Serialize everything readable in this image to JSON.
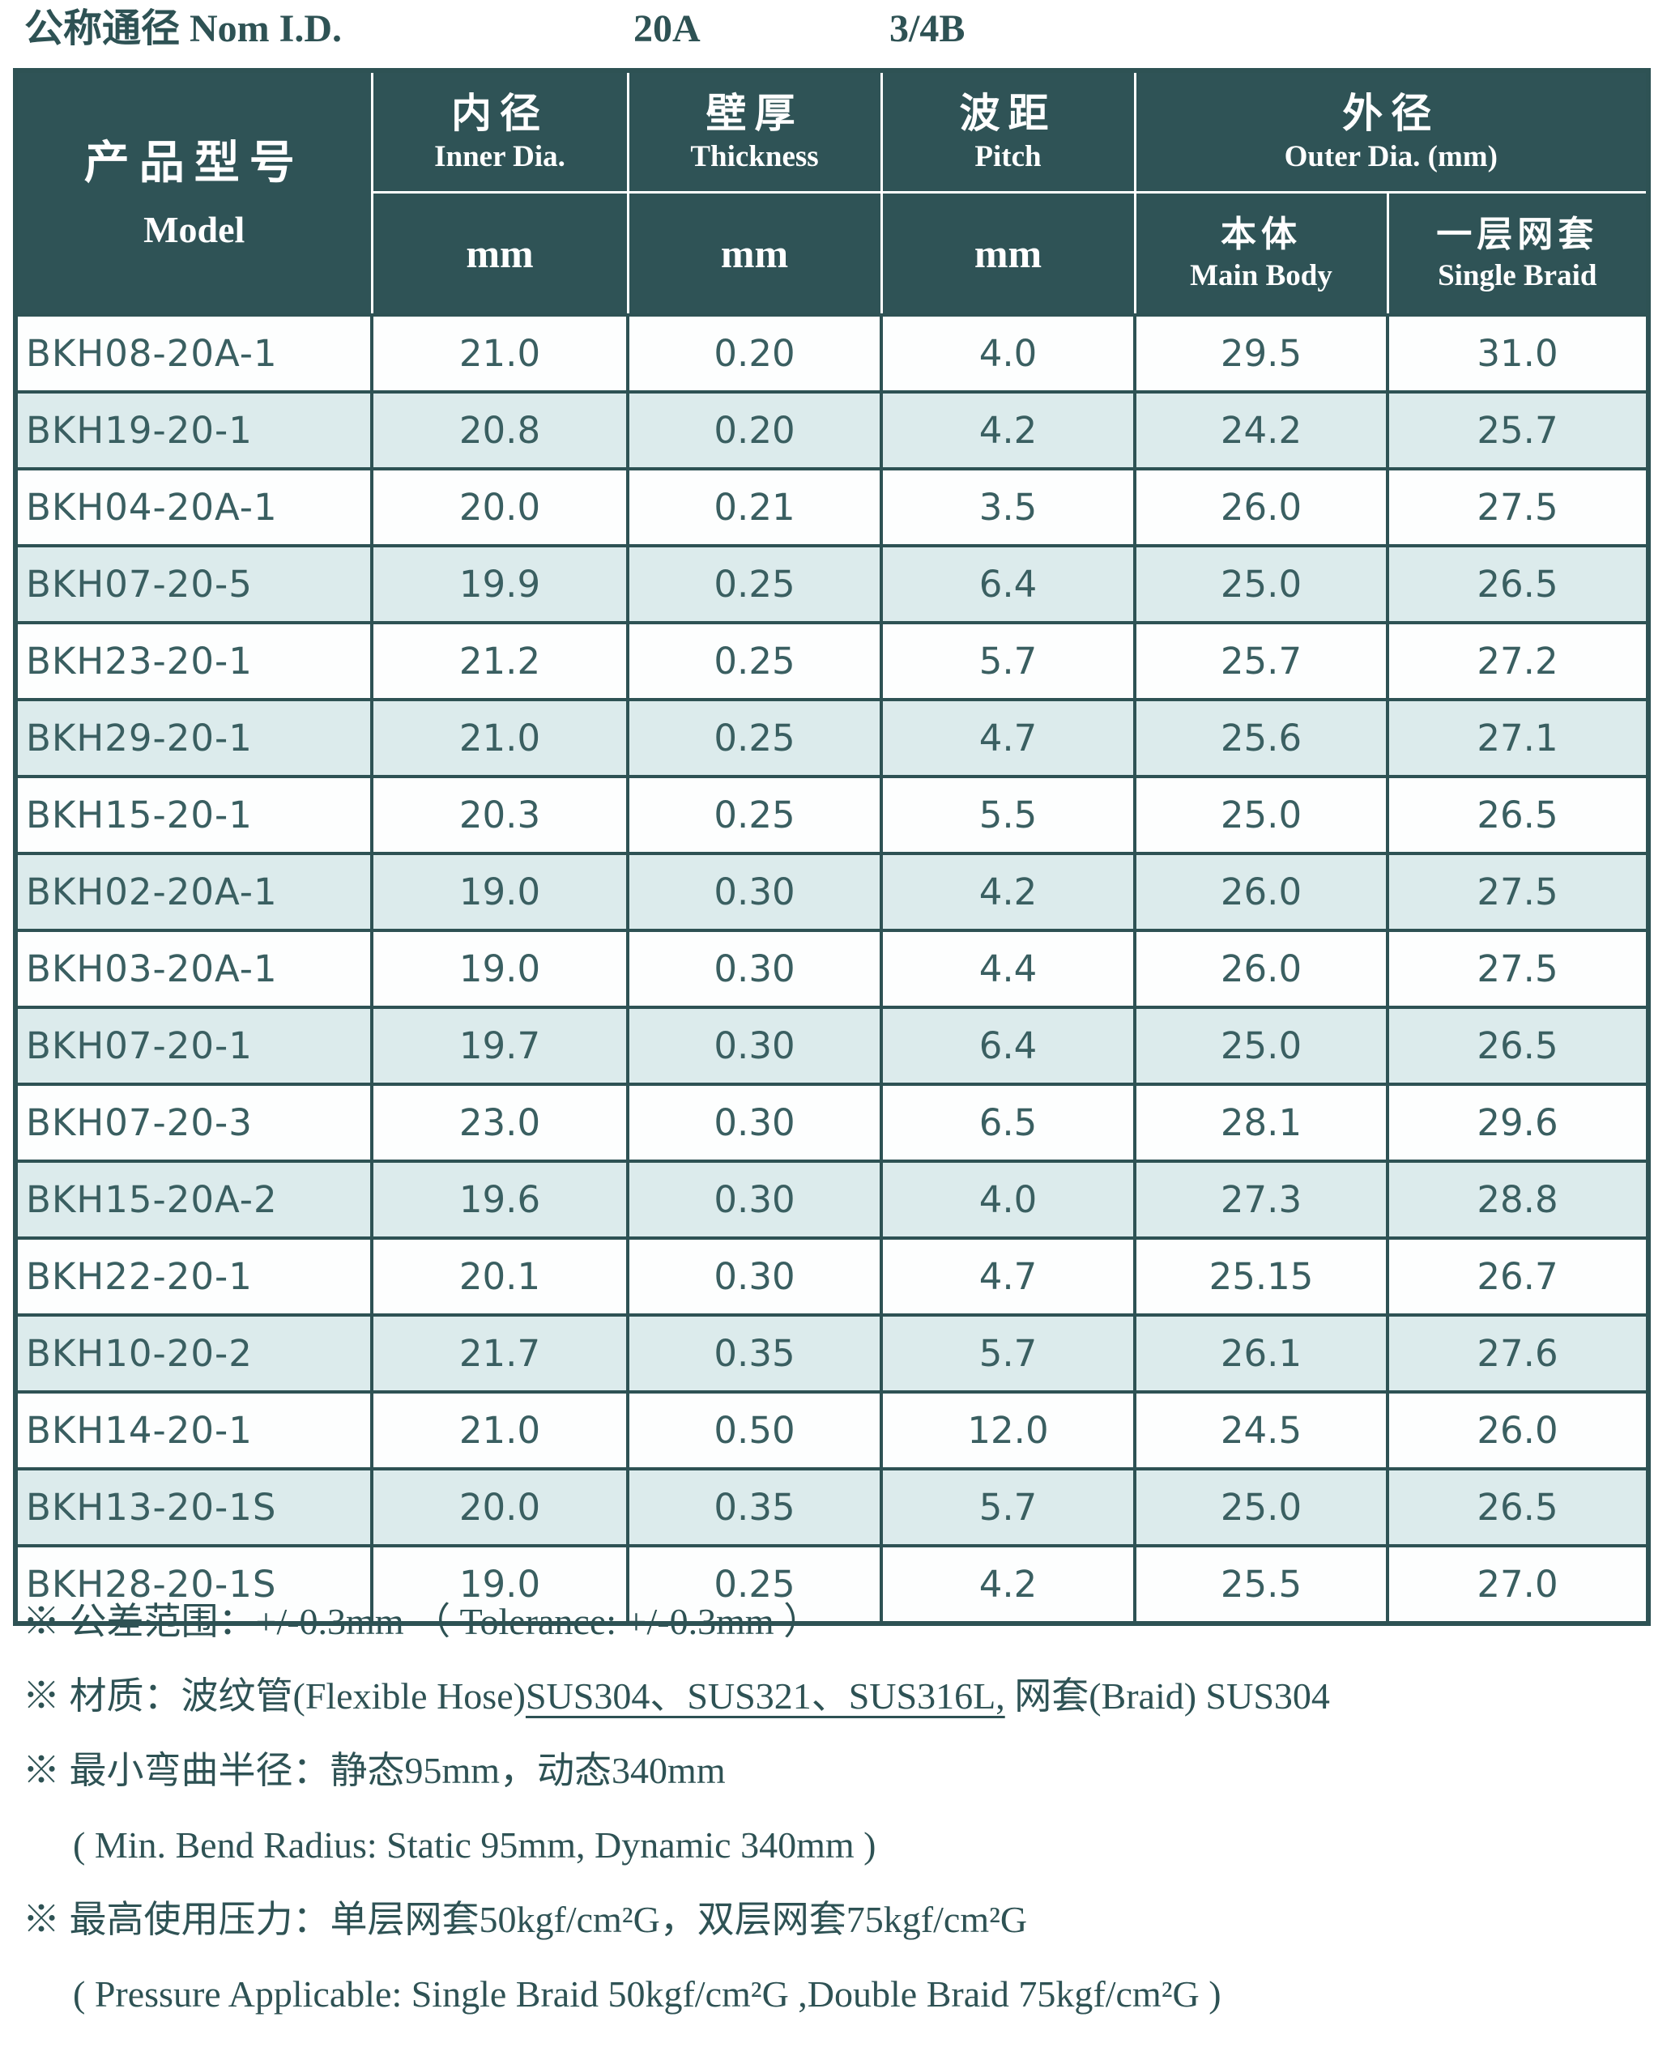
{
  "page_title": {
    "label": "公称通径 Nom I.D.",
    "values": [
      "20A",
      "3/4B"
    ]
  },
  "colors": {
    "header_bg": "#2f5356",
    "grid_line": "#2e5254",
    "alt_row_bg": "#dcebec",
    "dark_text": "#2e5254",
    "data_text": "#3a5f61"
  },
  "table": {
    "header": {
      "model": {
        "cjk": "产品型号",
        "en": "Model"
      },
      "columns": [
        {
          "cjk": "内径",
          "en": "Inner Dia.",
          "unit": "mm"
        },
        {
          "cjk": "壁厚",
          "en": "Thickness",
          "unit": "mm"
        },
        {
          "cjk": "波距",
          "en": "Pitch",
          "unit": "mm"
        }
      ],
      "outer_group": {
        "cjk": "外径",
        "en": "Outer Dia. (mm)",
        "sub_columns": [
          {
            "cjk": "本体",
            "en": "Main Body"
          },
          {
            "cjk": "一层网套",
            "en": "Single Braid"
          }
        ]
      }
    },
    "rows": [
      {
        "model": "BKH08-20A-1",
        "inner_dia": "21.0",
        "thickness": "0.20",
        "pitch": "4.0",
        "main_body": "29.5",
        "single_braid": "31.0"
      },
      {
        "model": "BKH19-20-1",
        "inner_dia": "20.8",
        "thickness": "0.20",
        "pitch": "4.2",
        "main_body": "24.2",
        "single_braid": "25.7"
      },
      {
        "model": "BKH04-20A-1",
        "inner_dia": "20.0",
        "thickness": "0.21",
        "pitch": "3.5",
        "main_body": "26.0",
        "single_braid": "27.5"
      },
      {
        "model": "BKH07-20-5",
        "inner_dia": "19.9",
        "thickness": "0.25",
        "pitch": "6.4",
        "main_body": "25.0",
        "single_braid": "26.5"
      },
      {
        "model": "BKH23-20-1",
        "inner_dia": "21.2",
        "thickness": "0.25",
        "pitch": "5.7",
        "main_body": "25.7",
        "single_braid": "27.2"
      },
      {
        "model": "BKH29-20-1",
        "inner_dia": "21.0",
        "thickness": "0.25",
        "pitch": "4.7",
        "main_body": "25.6",
        "single_braid": "27.1"
      },
      {
        "model": "BKH15-20-1",
        "inner_dia": "20.3",
        "thickness": "0.25",
        "pitch": "5.5",
        "main_body": "25.0",
        "single_braid": "26.5"
      },
      {
        "model": "BKH02-20A-1",
        "inner_dia": "19.0",
        "thickness": "0.30",
        "pitch": "4.2",
        "main_body": "26.0",
        "single_braid": "27.5"
      },
      {
        "model": "BKH03-20A-1",
        "inner_dia": "19.0",
        "thickness": "0.30",
        "pitch": "4.4",
        "main_body": "26.0",
        "single_braid": "27.5"
      },
      {
        "model": "BKH07-20-1",
        "inner_dia": "19.7",
        "thickness": "0.30",
        "pitch": "6.4",
        "main_body": "25.0",
        "single_braid": "26.5"
      },
      {
        "model": "BKH07-20-3",
        "inner_dia": "23.0",
        "thickness": "0.30",
        "pitch": "6.5",
        "main_body": "28.1",
        "single_braid": "29.6"
      },
      {
        "model": "BKH15-20A-2",
        "inner_dia": "19.6",
        "thickness": "0.30",
        "pitch": "4.0",
        "main_body": "27.3",
        "single_braid": "28.8"
      },
      {
        "model": "BKH22-20-1",
        "inner_dia": "20.1",
        "thickness": "0.30",
        "pitch": "4.7",
        "main_body": "25.15",
        "single_braid": "26.7"
      },
      {
        "model": "BKH10-20-2",
        "inner_dia": "21.7",
        "thickness": "0.35",
        "pitch": "5.7",
        "main_body": "26.1",
        "single_braid": "27.6"
      },
      {
        "model": "BKH14-20-1",
        "inner_dia": "21.0",
        "thickness": "0.50",
        "pitch": "12.0",
        "main_body": "24.5",
        "single_braid": "26.0"
      },
      {
        "model": "BKH13-20-1S",
        "inner_dia": "20.0",
        "thickness": "0.35",
        "pitch": "5.7",
        "main_body": "25.0",
        "single_braid": "26.5"
      },
      {
        "model": "BKH28-20-1S",
        "inner_dia": "19.0",
        "thickness": "0.25",
        "pitch": "4.2",
        "main_body": "25.5",
        "single_braid": "27.0"
      }
    ]
  },
  "notes": [
    {
      "indent": false,
      "segments": [
        {
          "t": "※ 公差范围：+/-0.3mm （ Tolerance: +/-0.3mm ）"
        }
      ]
    },
    {
      "indent": false,
      "segments": [
        {
          "t": "※ 材质：波纹管(Flexible Hose)"
        },
        {
          "t": "SUS304、SUS321、SUS316L,",
          "u": true
        },
        {
          "t": " 网套(Braid) SUS304"
        }
      ]
    },
    {
      "indent": false,
      "segments": [
        {
          "t": "※ 最小弯曲半径：静态95mm，动态340mm"
        }
      ]
    },
    {
      "indent": true,
      "segments": [
        {
          "t": "( Min. Bend Radius: Static 95mm, Dynamic 340mm )"
        }
      ]
    },
    {
      "indent": false,
      "segments": [
        {
          "t": "※ 最高使用压力：单层网套50kgf/cm²G，双层网套75kgf/cm²G"
        }
      ]
    },
    {
      "indent": true,
      "segments": [
        {
          "t": "( Pressure Applicable: Single Braid 50kgf/cm²G ,Double Braid 75kgf/cm²G )"
        }
      ]
    }
  ]
}
